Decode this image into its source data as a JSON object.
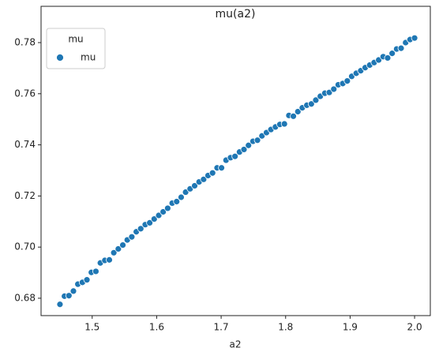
{
  "chart_data": {
    "type": "scatter",
    "title": "mu(a2)",
    "x_label": "a2",
    "legend_title": "mu",
    "xlim": [
      1.4207,
      2.0244
    ],
    "ylim": [
      0.6732,
      0.7942
    ],
    "xticks": [
      1.5,
      1.6,
      1.7,
      1.8,
      1.9,
      {
        "value": 2.0,
        "label": "2.0"
      }
    ],
    "yticks": [
      0.68,
      {
        "value": 0.7,
        "label": "0.70"
      },
      0.72,
      0.74,
      0.76,
      0.78
    ],
    "series": [
      {
        "name": "mu",
        "color": "#1f77b4",
        "x": [
          1.45,
          1.457,
          1.4639,
          1.4709,
          1.4778,
          1.4848,
          1.4918,
          1.4987,
          1.5057,
          1.5127,
          1.5196,
          1.5266,
          1.5335,
          1.5405,
          1.5475,
          1.5544,
          1.5614,
          1.5684,
          1.5753,
          1.5823,
          1.5892,
          1.5962,
          1.6032,
          1.6101,
          1.6171,
          1.6241,
          1.631,
          1.638,
          1.6449,
          1.6519,
          1.6589,
          1.6658,
          1.6728,
          1.6797,
          1.6867,
          1.6937,
          1.7006,
          1.7076,
          1.7146,
          1.7215,
          1.7285,
          1.7354,
          1.7424,
          1.7494,
          1.7563,
          1.7633,
          1.7703,
          1.7772,
          1.7842,
          1.7911,
          1.7981,
          1.8051,
          1.812,
          1.819,
          1.8259,
          1.8329,
          1.8399,
          1.8468,
          1.8538,
          1.8608,
          1.8677,
          1.8747,
          1.8816,
          1.8886,
          1.8956,
          1.9025,
          1.9095,
          1.9165,
          1.9234,
          1.9304,
          1.9373,
          1.9443,
          1.9513,
          1.9582,
          1.9652,
          1.9722,
          1.9791,
          1.9861,
          1.993,
          2.0
        ],
        "values": [
          0.6776,
          0.6808,
          0.681,
          0.6828,
          0.6855,
          0.6862,
          0.6872,
          0.6901,
          0.6905,
          0.6938,
          0.6948,
          0.695,
          0.6978,
          0.6993,
          0.7008,
          0.7028,
          0.704,
          0.706,
          0.7072,
          0.7088,
          0.7095,
          0.711,
          0.7124,
          0.7138,
          0.7152,
          0.7172,
          0.7178,
          0.7195,
          0.7215,
          0.7228,
          0.724,
          0.7255,
          0.7265,
          0.728,
          0.729,
          0.731,
          0.731,
          0.734,
          0.735,
          0.7355,
          0.7372,
          0.7382,
          0.7398,
          0.7414,
          0.7418,
          0.7435,
          0.7448,
          0.746,
          0.747,
          0.748,
          0.7482,
          0.7515,
          0.7512,
          0.753,
          0.7545,
          0.7555,
          0.756,
          0.7575,
          0.759,
          0.7602,
          0.7605,
          0.7618,
          0.7635,
          0.764,
          0.765,
          0.7668,
          0.768,
          0.769,
          0.7702,
          0.7712,
          0.7722,
          0.7732,
          0.7745,
          0.774,
          0.7758,
          0.7775,
          0.7778,
          0.78,
          0.7812,
          0.7818
        ]
      }
    ]
  }
}
